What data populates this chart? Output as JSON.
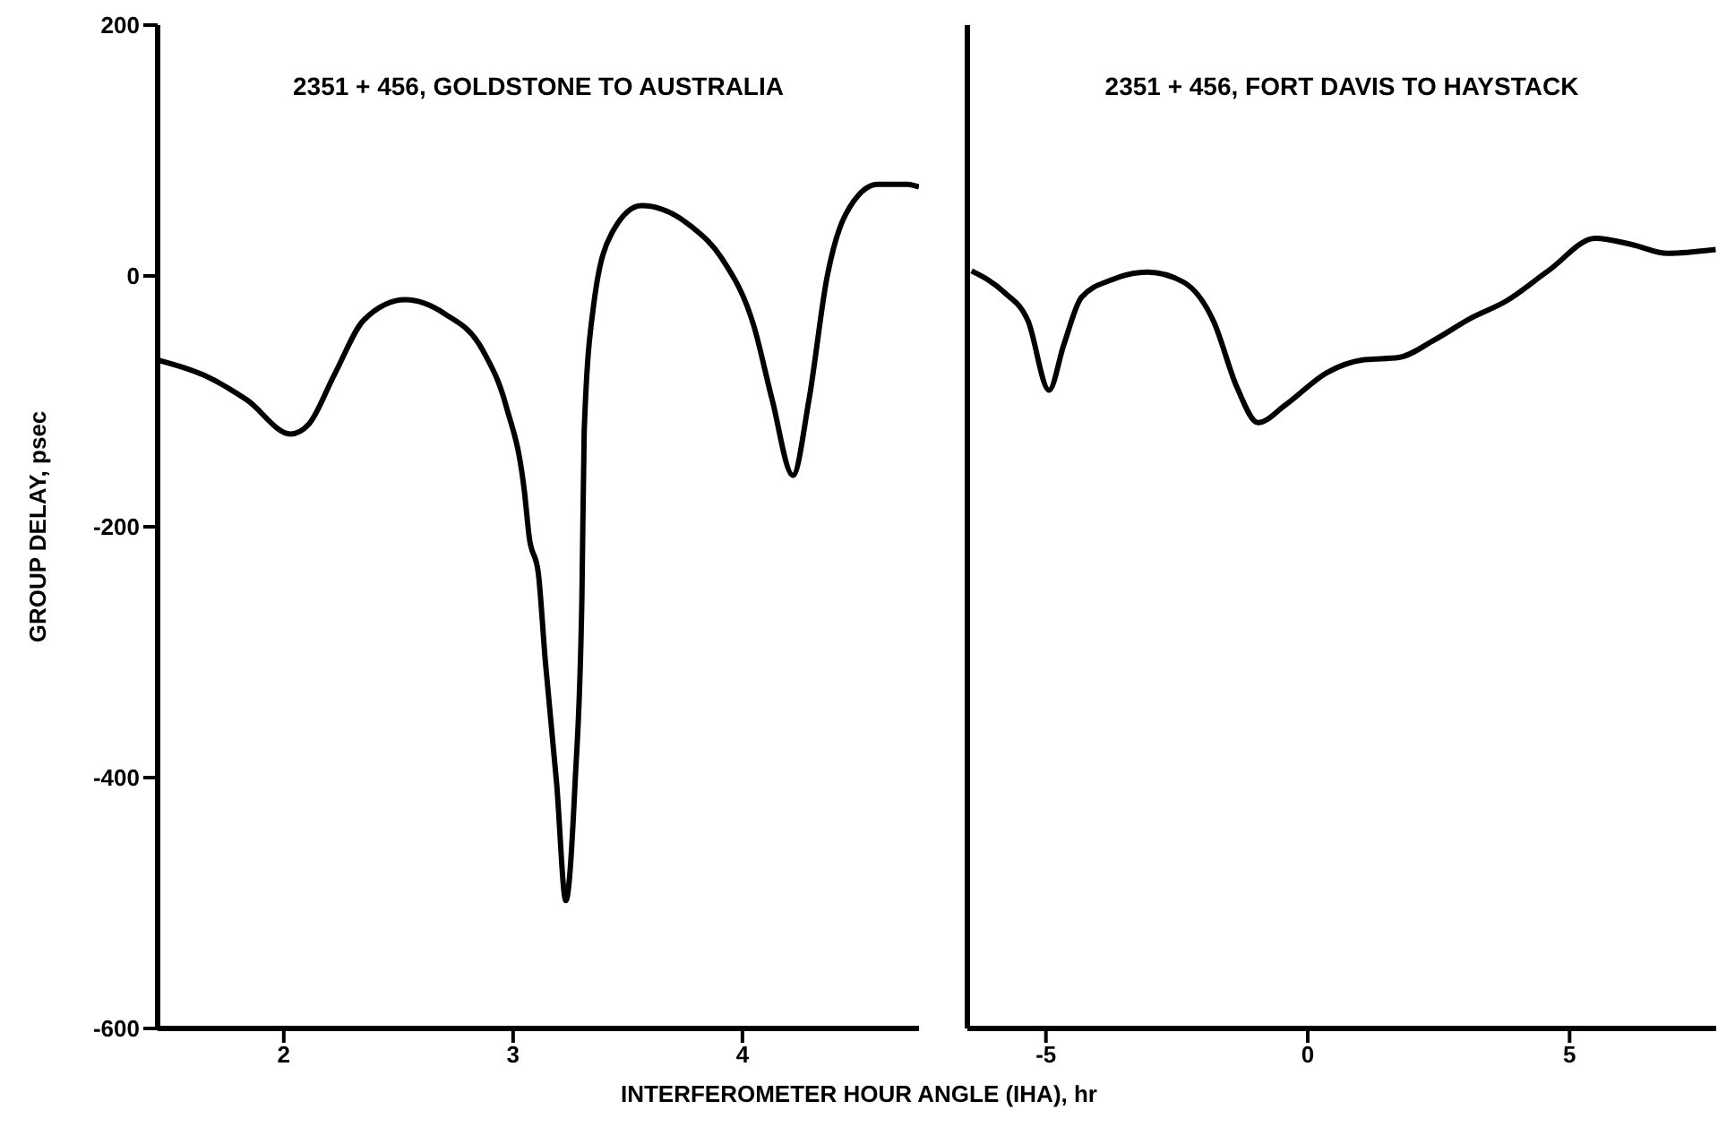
{
  "chart_data": [
    {
      "type": "line",
      "title": "2351 + 456, GOLDSTONE TO AUSTRALIA",
      "ylabel": "GROUP DELAY, psec",
      "xlabel": "INTERFEROMETER HOUR ANGLE (IHA), hr",
      "xlim": [
        1.45,
        4.77
      ],
      "xticks": [
        2,
        3,
        4
      ],
      "ylim": [
        -600,
        200
      ],
      "yticks": [
        -600,
        -400,
        -200,
        0,
        200
      ],
      "grid": false,
      "series": [
        {
          "color": "#000000",
          "x": [
            1.45,
            1.65,
            1.84,
            2.03,
            2.11,
            2.22,
            2.35,
            2.53,
            2.7,
            2.87,
            2.97,
            3.05,
            3.07,
            3.11,
            3.14,
            3.19,
            3.23,
            3.27,
            3.3,
            3.31,
            3.35,
            3.43,
            3.56,
            3.78,
            3.91,
            4.05,
            4.13,
            4.22,
            4.29,
            4.37,
            4.45,
            4.59,
            4.72,
            4.77
          ],
          "values": [
            -67,
            -79,
            -99,
            -126,
            -118,
            -79,
            -35,
            -19,
            -30,
            -60,
            -104,
            -173,
            -208,
            -237,
            -306,
            -405,
            -498,
            -405,
            -257,
            -124,
            -25,
            34,
            56,
            39,
            14,
            -40,
            -99,
            -159,
            -99,
            0,
            49,
            73,
            73,
            71
          ]
        }
      ]
    },
    {
      "type": "line",
      "title": "2351 + 456, FORT DAVIS TO HAYSTACK",
      "xlim": [
        -6.5,
        7.8
      ],
      "xticks": [
        -5,
        0,
        5
      ],
      "ylim": [
        -600,
        200
      ],
      "yticks": [
        -600,
        -400,
        -200,
        0,
        200
      ],
      "tick_labels": "x",
      "grid": false,
      "series": [
        {
          "color": "#000000",
          "x": [
            -6.42,
            -5.8,
            -5.34,
            -4.94,
            -4.66,
            -4.32,
            -3.74,
            -3.06,
            -2.37,
            -1.8,
            -1.35,
            -0.95,
            -0.43,
            0.37,
            1.05,
            1.74,
            2.42,
            3.1,
            3.79,
            4.59,
            5.5,
            6.19,
            6.87,
            7.79
          ],
          "values": [
            4,
            -13,
            -36,
            -91,
            -55,
            -17,
            -3,
            3,
            -5,
            -36,
            -89,
            -117,
            -103,
            -77,
            -67,
            -65,
            -51,
            -34,
            -20,
            4,
            30,
            25,
            18,
            21
          ]
        }
      ]
    }
  ]
}
